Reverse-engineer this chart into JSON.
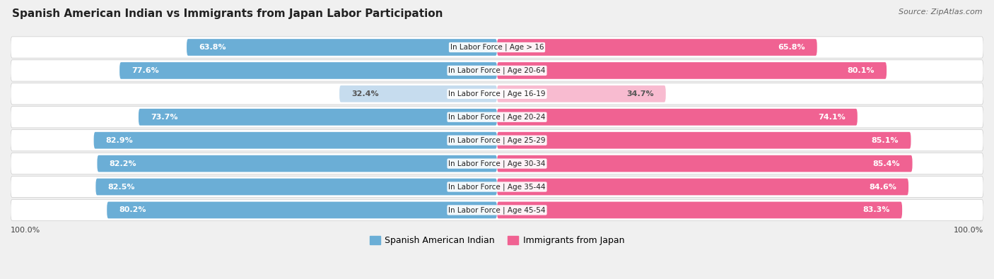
{
  "title": "Spanish American Indian vs Immigrants from Japan Labor Participation",
  "source": "Source: ZipAtlas.com",
  "categories": [
    "In Labor Force | Age > 16",
    "In Labor Force | Age 20-64",
    "In Labor Force | Age 16-19",
    "In Labor Force | Age 20-24",
    "In Labor Force | Age 25-29",
    "In Labor Force | Age 30-34",
    "In Labor Force | Age 35-44",
    "In Labor Force | Age 45-54"
  ],
  "left_values": [
    63.8,
    77.6,
    32.4,
    73.7,
    82.9,
    82.2,
    82.5,
    80.2
  ],
  "right_values": [
    65.8,
    80.1,
    34.7,
    74.1,
    85.1,
    85.4,
    84.6,
    83.3
  ],
  "left_color": "#6BAED6",
  "right_color": "#F06292",
  "left_color_light": "#C6DCEE",
  "right_color_light": "#F8BBD0",
  "left_label": "Spanish American Indian",
  "right_label": "Immigrants from Japan",
  "max_value": 100.0,
  "bg_color": "#f0f0f0",
  "row_bg_color": "#e8e8e8"
}
